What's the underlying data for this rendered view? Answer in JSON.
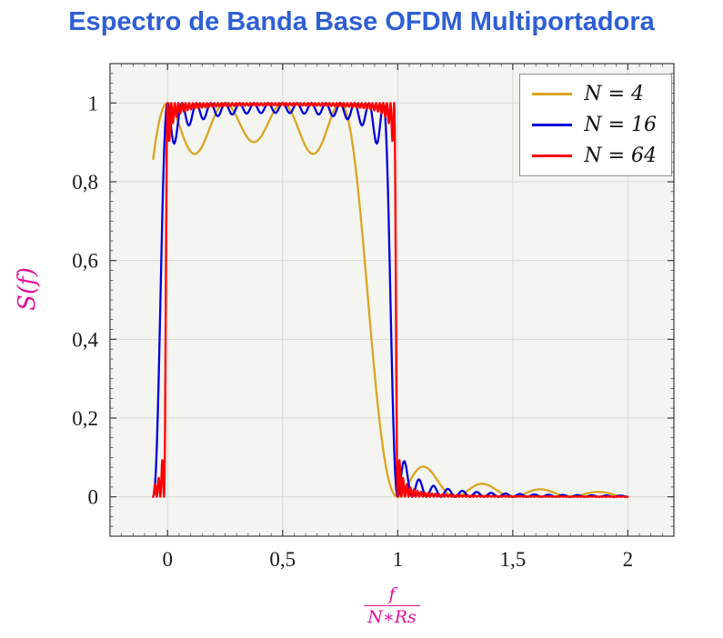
{
  "chart_data": {
    "type": "line",
    "title": "Espectro de Banda Base OFDM Multiportadora",
    "ylabel": "S(f)",
    "xlabel_numerator": "f",
    "xlabel_denominator": "N∗Rs",
    "xlim": [
      -0.25,
      2.2
    ],
    "ylim": [
      -0.1,
      1.1
    ],
    "x_ticks": [
      0,
      0.5,
      1,
      1.5,
      2
    ],
    "x_tick_labels": [
      "0",
      "0,5",
      "1",
      "1,5",
      "2"
    ],
    "y_ticks": [
      0,
      0.2,
      0.4,
      0.6,
      0.8,
      1
    ],
    "y_tick_labels": [
      "0",
      "0,2",
      "0,4",
      "0,6",
      "0,8",
      "1"
    ],
    "x_minor_step": 0.05,
    "y_minor_step": 0.025,
    "grid": "major",
    "legend_position": "top-right",
    "decimal_separator": ",",
    "series": [
      {
        "name": "N = 4",
        "N": 4,
        "color": "#DAA520"
      },
      {
        "name": "N = 16",
        "N": 16,
        "color": "#0000DD"
      },
      {
        "name": "N = 64",
        "N": 64,
        "color": "#FF0000"
      }
    ],
    "curve_formula": "S(x) = sum_{k=0}^{N-1} sinc^2(N*x - k), with sinc(v)=sin(pi*v)/(pi*v); flat passband ~1 over 0<=x<1 with N ripples (dips ~0.87 for N=4), steep roll-off near x=1, decaying sidelobes (first ~0.07) for x>1",
    "x_start": -0.0625,
    "x_end": 2.0
  },
  "styles": {
    "title_color": "#2e5fd3",
    "axis_label_color": "#e0119d",
    "plot_bg": "#f4f4f1",
    "grid_color": "#d8d8d5",
    "frame_color": "#3a3a3a",
    "legend_border": "#8f8f8f",
    "tick_label_color": "#1a1a1a"
  }
}
